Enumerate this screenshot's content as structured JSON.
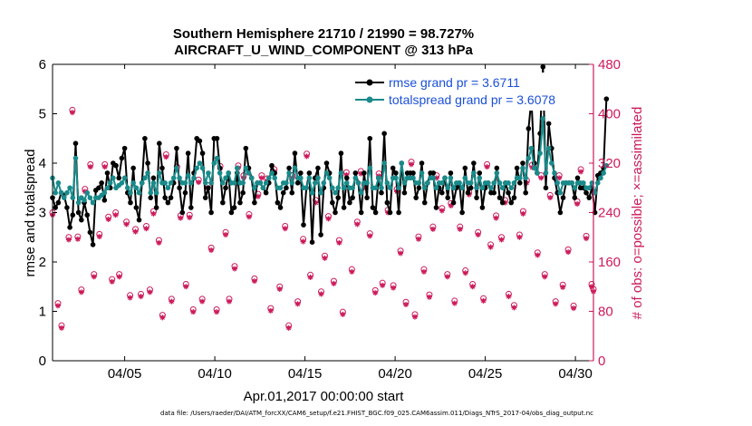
{
  "chart_data": {
    "type": "line",
    "title": "Southern Hemisphere 21710 / 21990 = 98.727%",
    "subtitle": "AIRCRAFT_U_WIND_COMPONENT @ 313 hPa",
    "xlabel": "Apr.01,2017 00:00:00 start",
    "ylabel_left": "rmse and totalspread",
    "ylabel_right": "# of obs: o=possible; ×=assimilated",
    "footer": "data file: /Users/raeder/DAI/ATM_forcXX/CAM6_setup/f.e21.FHIST_BGC.f09_025.CAM6assim.011/Diags_NTrS_2017-04/obs_diag_output.nc",
    "xlim": [
      1,
      31
    ],
    "ylim_left": [
      0,
      6
    ],
    "ylim_right": [
      0,
      480
    ],
    "x_ticks": [
      5,
      10,
      15,
      20,
      25,
      30
    ],
    "x_tick_labels": [
      "04/05",
      "04/10",
      "04/15",
      "04/20",
      "04/25",
      "04/30"
    ],
    "y_ticks_left": [
      0,
      1,
      2,
      3,
      4,
      5,
      6
    ],
    "y_tick_labels_left": [
      "0",
      "1",
      "2",
      "3",
      "4",
      "5",
      "6"
    ],
    "y_ticks_right": [
      0,
      80,
      160,
      240,
      320,
      400,
      480
    ],
    "y_tick_labels_right": [
      "0",
      "80",
      "160",
      "240",
      "320",
      "400",
      "480"
    ],
    "colors": {
      "rmse": "#000000",
      "spread": "#1a8a8a",
      "obs": "#cc1a5a",
      "legend_text": "#1a4fd8"
    },
    "series": [
      {
        "name": "rmse grand pr = 3.6711",
        "role": "rmse",
        "values": [
          3.3,
          3.1,
          3.2,
          3.4,
          3.35,
          3.1,
          2.7,
          2.95,
          4.4,
          3.0,
          2.85,
          3.2,
          2.95,
          2.6,
          2.35,
          3.45,
          3.5,
          3.6,
          3.25,
          3.8,
          3.5,
          4.0,
          3.95,
          3.7,
          4.1,
          4.3,
          3.4,
          3.2,
          3.9,
          3.1,
          2.85,
          3.6,
          4.5,
          4.0,
          3.3,
          3.7,
          3.1,
          4.4,
          3.9,
          3.3,
          3.2,
          3.3,
          3.6,
          4.3,
          3.5,
          3.0,
          3.4,
          4.2,
          3.1,
          3.8,
          4.5,
          4.45,
          4.2,
          3.3,
          3.5,
          3.0,
          4.5,
          4.5,
          3.9,
          3.2,
          3.5,
          3.8,
          3.0,
          3.1,
          3.8,
          3.2,
          3.4,
          4.3,
          3.9,
          3.7,
          3.2,
          3.6,
          3.6,
          3.5,
          3.4,
          3.6,
          3.95,
          3.8,
          3.2,
          3.1,
          3.4,
          3.5,
          3.9,
          3.4,
          4.2,
          3.6,
          3.8,
          2.75,
          3.5,
          3.8,
          2.4,
          3.7,
          3.9,
          2.55,
          3.5,
          4.0,
          3.8,
          3.2,
          3.0,
          3.3,
          4.2,
          3.1,
          3.7,
          3.2,
          3.3,
          3.8,
          3.6,
          3.0,
          3.8,
          3.3,
          4.5,
          3.1,
          3.0,
          3.7,
          3.4,
          4.6,
          3.2,
          3.0,
          3.9,
          3.8,
          3.0,
          4.0,
          3.4,
          3.8,
          3.8,
          3.8,
          3.3,
          3.5,
          4.0,
          3.2,
          3.6,
          3.8,
          3.8,
          3.1,
          3.5,
          3.4,
          3.7,
          3.3,
          3.8,
          3.2,
          3.5,
          3.6,
          3.0,
          3.9,
          3.4,
          3.5,
          4.0,
          3.3,
          3.8,
          3.1,
          3.5,
          3.6,
          3.4,
          3.4,
          3.9,
          3.3,
          3.2,
          3.6,
          3.4,
          3.2,
          3.3,
          3.9,
          3.6,
          4.0,
          3.4,
          4.7,
          5.3,
          4.0,
          3.8,
          4.6,
          5.95,
          3.5,
          4.8,
          4.3,
          3.7,
          3.4,
          3.0,
          3.3,
          3.6,
          3.6,
          3.6,
          3.3,
          3.7,
          3.5,
          3.5,
          3.4,
          3.3,
          3.5,
          3.0,
          3.75,
          3.8,
          3.9,
          5.3
        ],
        "x_start": 1.0,
        "x_step": 0.16
      },
      {
        "name": "totalspread grand pr = 3.6078",
        "role": "spread",
        "values": [
          3.7,
          3.4,
          3.6,
          3.4,
          3.3,
          3.4,
          3.5,
          3.3,
          4.1,
          3.2,
          3.3,
          3.25,
          3.4,
          3.3,
          3.2,
          3.3,
          3.3,
          3.35,
          3.4,
          3.5,
          3.6,
          3.7,
          3.5,
          3.55,
          3.6,
          3.7,
          3.5,
          3.4,
          3.6,
          3.5,
          3.4,
          3.6,
          3.7,
          3.8,
          3.4,
          3.6,
          3.4,
          3.8,
          3.6,
          3.6,
          3.5,
          3.6,
          3.7,
          3.9,
          3.7,
          3.6,
          3.6,
          3.75,
          3.6,
          3.7,
          3.9,
          4.0,
          3.9,
          3.6,
          3.8,
          3.6,
          4.0,
          4.1,
          3.8,
          3.6,
          3.7,
          3.8,
          3.6,
          3.6,
          3.9,
          3.6,
          3.6,
          3.9,
          3.8,
          3.7,
          3.5,
          3.6,
          3.6,
          3.5,
          3.6,
          3.7,
          3.8,
          3.7,
          3.5,
          3.5,
          3.6,
          3.6,
          3.8,
          3.6,
          3.9,
          3.7,
          3.7,
          3.5,
          3.5,
          3.7,
          3.4,
          3.6,
          3.7,
          3.4,
          3.6,
          3.8,
          3.7,
          3.5,
          3.4,
          3.5,
          3.8,
          3.5,
          3.6,
          3.5,
          3.5,
          3.7,
          3.6,
          3.4,
          3.6,
          3.6,
          3.9,
          3.5,
          3.5,
          3.7,
          3.5,
          4.0,
          3.6,
          3.5,
          3.7,
          3.7,
          3.5,
          4.0,
          3.6,
          3.7,
          3.7,
          3.7,
          3.6,
          3.6,
          3.8,
          3.5,
          3.6,
          3.7,
          3.7,
          3.5,
          3.6,
          3.6,
          3.7,
          3.5,
          3.7,
          3.5,
          3.6,
          3.6,
          3.5,
          3.7,
          3.6,
          3.6,
          3.8,
          3.5,
          3.7,
          3.5,
          3.6,
          3.6,
          3.5,
          3.6,
          3.8,
          3.6,
          3.5,
          3.6,
          3.6,
          3.5,
          3.6,
          3.7,
          3.7,
          3.9,
          3.7,
          4.1,
          4.3,
          3.9,
          3.8,
          4.2,
          4.9,
          3.8,
          4.3,
          4.0,
          3.8,
          3.6,
          3.4,
          3.6,
          3.6,
          3.6,
          3.6,
          3.5,
          3.6,
          3.6,
          3.6,
          3.5,
          3.5,
          3.6,
          3.4,
          3.6,
          3.7,
          3.8,
          3.95
        ],
        "x_start": 1.0,
        "x_step": 0.16
      },
      {
        "name": "obs possible",
        "role": "obs_possible",
        "marker": "o",
        "points": [
          [
            1.0,
            240
          ],
          [
            1.3,
            93
          ],
          [
            1.5,
            57
          ],
          [
            1.9,
            200
          ],
          [
            2.1,
            406
          ],
          [
            2.4,
            201
          ],
          [
            2.6,
            115
          ],
          [
            2.8,
            278
          ],
          [
            3.1,
            318
          ],
          [
            3.3,
            140
          ],
          [
            3.6,
            205
          ],
          [
            3.9,
            318
          ],
          [
            4.1,
            233
          ],
          [
            4.3,
            132
          ],
          [
            4.5,
            240
          ],
          [
            4.7,
            140
          ],
          [
            5.1,
            225
          ],
          [
            5.3,
            106
          ],
          [
            5.6,
            213
          ],
          [
            5.9,
            108
          ],
          [
            6.2,
            218
          ],
          [
            6.4,
            115
          ],
          [
            6.6,
            242
          ],
          [
            6.9,
            195
          ],
          [
            7.1,
            74
          ],
          [
            7.3,
            334
          ],
          [
            7.6,
            100
          ],
          [
            7.9,
            314
          ],
          [
            8.1,
            235
          ],
          [
            8.4,
            124
          ],
          [
            8.6,
            236
          ],
          [
            8.8,
            83
          ],
          [
            9.1,
            293
          ],
          [
            9.3,
            100
          ],
          [
            9.6,
            284
          ],
          [
            9.8,
            183
          ],
          [
            10.1,
            83
          ],
          [
            10.3,
            315
          ],
          [
            10.6,
            208
          ],
          [
            10.8,
            100
          ],
          [
            11.1,
            153
          ],
          [
            11.3,
            316
          ],
          [
            11.6,
            300
          ],
          [
            11.9,
            237
          ],
          [
            12.2,
            133
          ],
          [
            12.4,
            270
          ],
          [
            12.6,
            300
          ],
          [
            12.9,
            295
          ],
          [
            13.1,
            85
          ],
          [
            13.3,
            310
          ],
          [
            13.6,
            120
          ],
          [
            13.9,
            218
          ],
          [
            14.1,
            57
          ],
          [
            14.3,
            300
          ],
          [
            14.6,
            96
          ],
          [
            14.9,
            197
          ],
          [
            15.1,
            335
          ],
          [
            15.3,
            139
          ],
          [
            15.6,
            260
          ],
          [
            15.9,
            112
          ],
          [
            16.1,
            170
          ],
          [
            16.3,
            234
          ],
          [
            16.6,
            129
          ],
          [
            16.9,
            195
          ],
          [
            17.1,
            79
          ],
          [
            17.3,
            305
          ],
          [
            17.6,
            148
          ],
          [
            17.9,
            225
          ],
          [
            18.1,
            307
          ],
          [
            18.3,
            285
          ],
          [
            18.6,
            206
          ],
          [
            18.9,
            114
          ],
          [
            19.1,
            303
          ],
          [
            19.3,
            126
          ],
          [
            19.6,
            244
          ],
          [
            19.9,
            122
          ],
          [
            20.1,
            278
          ],
          [
            20.3,
            178
          ],
          [
            20.6,
            95
          ],
          [
            20.9,
            322
          ],
          [
            21.1,
            75
          ],
          [
            21.3,
            201
          ],
          [
            21.6,
            148
          ],
          [
            21.9,
            107
          ],
          [
            22.1,
            217
          ],
          [
            22.3,
            300
          ],
          [
            22.6,
            247
          ],
          [
            22.9,
            140
          ],
          [
            23.1,
            255
          ],
          [
            23.3,
            97
          ],
          [
            23.6,
            217
          ],
          [
            23.9,
            146
          ],
          [
            24.1,
            273
          ],
          [
            24.3,
            124
          ],
          [
            24.6,
            208
          ],
          [
            24.9,
            101
          ],
          [
            25.1,
            318
          ],
          [
            25.3,
            188
          ],
          [
            25.6,
            235
          ],
          [
            25.9,
            200
          ],
          [
            26.1,
            260
          ],
          [
            26.3,
            108
          ],
          [
            26.6,
            90
          ],
          [
            26.9,
            204
          ],
          [
            27.1,
            242
          ],
          [
            27.3,
            292
          ],
          [
            27.6,
            317
          ],
          [
            27.9,
            175
          ],
          [
            28.1,
            300
          ],
          [
            28.3,
            140
          ],
          [
            28.6,
            268
          ],
          [
            28.9,
            96
          ],
          [
            29.1,
            300
          ],
          [
            29.3,
            123
          ],
          [
            29.6,
            180
          ],
          [
            29.9,
            89
          ],
          [
            30.1,
            258
          ],
          [
            30.3,
            310
          ],
          [
            30.6,
            202
          ],
          [
            30.9,
            124
          ],
          [
            31.0,
            116
          ]
        ]
      }
    ]
  }
}
